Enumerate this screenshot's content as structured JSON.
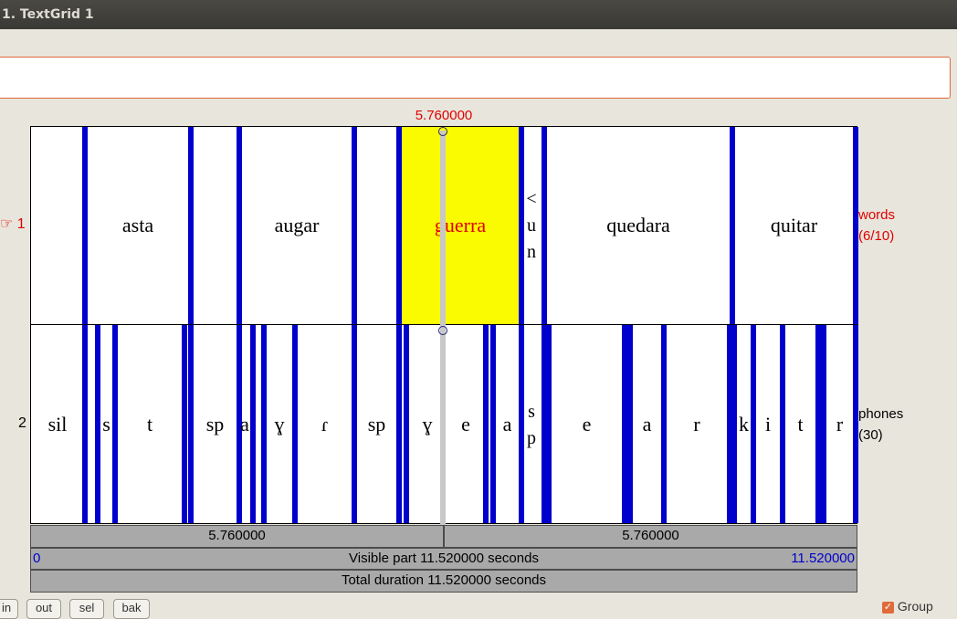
{
  "window": {
    "title": "1. TextGrid 1"
  },
  "cursor": {
    "time_label": "5.760000"
  },
  "tiers": [
    {
      "number": "1",
      "marker": "☞",
      "name": "words",
      "count": "(6/10)",
      "labels": [
        "asta",
        "augar",
        "guerra",
        "<",
        "u",
        "n",
        "quedara",
        "quitar"
      ]
    },
    {
      "number": "2",
      "name": "phones",
      "count": "(30)",
      "labels": [
        "sil",
        "s",
        "t",
        "sp",
        "a",
        "ɣ",
        "ɾ",
        "sp",
        "ɣ",
        "e",
        "a",
        "s",
        "p",
        "e",
        "a",
        "r",
        "k",
        "i",
        "t",
        "r"
      ]
    }
  ],
  "bars": {
    "left_segment": "5.760000",
    "right_segment": "5.760000",
    "visible_start": "0",
    "visible_label": "Visible part 11.520000 seconds",
    "visible_end": "11.520000",
    "total_label": "Total duration 11.520000 seconds"
  },
  "buttons": {
    "in_label": "in",
    "out_label": "out",
    "sel_label": "sel",
    "bak_label": "bak"
  },
  "group": {
    "label": "Group",
    "checked": true
  },
  "colors": {
    "boundary": "#0000cc",
    "selection": "#fafa00",
    "accent_red": "#e00000"
  }
}
